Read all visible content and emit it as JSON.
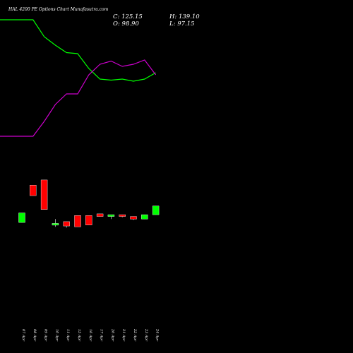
{
  "chart_data": {
    "type": "candlestick",
    "title": "HAL 4200 PE Options Chart Munafasutra.com",
    "ohlc_summary": {
      "close_label": "C: 125.15",
      "open_label": "O: 98.90",
      "high_label": "H: 139.10",
      "low_label": "L: 97.15"
    },
    "categories": [
      "07 Apr",
      "08 Apr",
      "09 Apr",
      "10 Apr",
      "11 Apr",
      "15 Apr",
      "16 Apr",
      "17 Apr",
      "20 Apr",
      "21 Apr",
      "22 Apr",
      "23 Apr",
      "24 Apr"
    ],
    "candles": [
      {
        "open": 13.2,
        "high": 13.2,
        "low": 12.1,
        "close": 12.1,
        "color": "#00ff00"
      },
      {
        "open": 16.4,
        "high": 16.4,
        "low": 15.2,
        "close": 15.2,
        "color": "#ff0000"
      },
      {
        "open": 17.0,
        "high": 17.0,
        "low": 13.6,
        "close": 13.6,
        "color": "#ff0000"
      },
      {
        "open": 11.8,
        "high": 12.5,
        "low": 11.6,
        "close": 12.0,
        "color": "#00ff00"
      },
      {
        "open": 12.2,
        "high": 12.2,
        "low": 11.5,
        "close": 11.7,
        "color": "#ff0000"
      },
      {
        "open": 12.9,
        "high": 12.9,
        "low": 11.6,
        "close": 11.6,
        "color": "#ff0000"
      },
      {
        "open": 12.9,
        "high": 12.9,
        "low": 11.8,
        "close": 11.8,
        "color": "#ff0000"
      },
      {
        "open": 13.1,
        "high": 13.1,
        "low": 12.8,
        "close": 12.8,
        "color": "#ff0000"
      },
      {
        "open": 12.8,
        "high": 13.0,
        "low": 12.5,
        "close": 13.0,
        "color": "#00ff00"
      },
      {
        "open": 13.0,
        "high": 13.0,
        "low": 12.7,
        "close": 12.8,
        "color": "#ff0000"
      },
      {
        "open": 12.8,
        "high": 12.8,
        "low": 12.4,
        "close": 12.5,
        "color": "#ff0000"
      },
      {
        "open": 12.5,
        "high": 13.0,
        "low": 12.5,
        "close": 13.0,
        "color": "#00ff00"
      },
      {
        "open": 13.0,
        "high": 14.0,
        "low": 13.0,
        "close": 14.0,
        "color": "#00ff00"
      }
    ],
    "series": [
      {
        "values": [
          88.0,
          88.0,
          80.0,
          76.0,
          72.5,
          72.0,
          65.0,
          60.0,
          59.5,
          60.0,
          59.0,
          60.0,
          63.0
        ],
        "color": "#00ff00"
      },
      {
        "values": [
          33.0,
          33.0,
          40.0,
          48.0,
          53.0,
          53.0,
          62.0,
          67.0,
          68.5,
          66.0,
          67.0,
          69.0,
          62.0
        ],
        "color": "#cc00cc"
      }
    ],
    "grid": false,
    "background": "#000000"
  }
}
